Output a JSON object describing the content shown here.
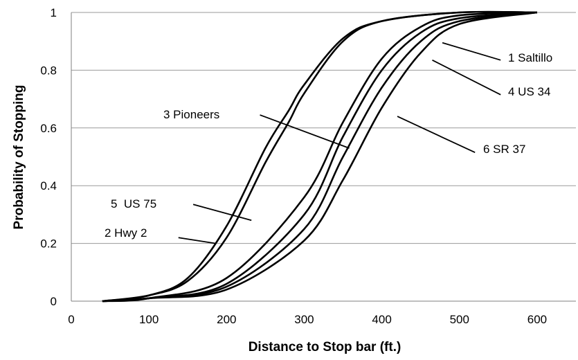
{
  "chart_data": {
    "type": "line",
    "title": "",
    "xlabel": "Distance to Stop bar (ft.)",
    "ylabel": "Probability of Stopping",
    "xlim": [
      0,
      650
    ],
    "ylim": [
      0,
      1
    ],
    "xticks": [
      0,
      100,
      200,
      300,
      400,
      500,
      600
    ],
    "yticks": [
      0,
      0.2,
      0.4,
      0.6,
      0.8,
      1
    ],
    "xtick_labels": [
      "0",
      "100",
      "200",
      "300",
      "400",
      "500",
      "600"
    ],
    "ytick_labels": [
      "0",
      "0.2",
      "0.4",
      "0.6",
      "0.8",
      "1"
    ],
    "grid": true,
    "series": [
      {
        "name": "1 Saltillo",
        "x": [
          40,
          100,
          200,
          300,
          350,
          400,
          450,
          500,
          600
        ],
        "y": [
          0.0,
          0.01,
          0.06,
          0.3,
          0.57,
          0.8,
          0.93,
          0.98,
          1.0
        ]
      },
      {
        "name": "2 Hwy 2",
        "x": [
          40,
          100,
          150,
          200,
          250,
          280,
          300,
          350,
          400,
          500,
          600
        ],
        "y": [
          0.0,
          0.02,
          0.07,
          0.22,
          0.48,
          0.62,
          0.72,
          0.9,
          0.97,
          1.0,
          1.0
        ]
      },
      {
        "name": "3 Pioneers",
        "x": [
          40,
          100,
          200,
          300,
          350,
          400,
          450,
          500,
          600
        ],
        "y": [
          0.0,
          0.01,
          0.08,
          0.36,
          0.62,
          0.84,
          0.95,
          0.99,
          1.0
        ]
      },
      {
        "name": "4 US 34",
        "x": [
          40,
          100,
          200,
          300,
          350,
          400,
          450,
          500,
          600
        ],
        "y": [
          0.0,
          0.01,
          0.05,
          0.25,
          0.5,
          0.74,
          0.9,
          0.97,
          1.0
        ]
      },
      {
        "name": "5 US 75",
        "x": [
          40,
          100,
          150,
          200,
          250,
          280,
          300,
          350,
          400,
          500,
          600
        ],
        "y": [
          0.0,
          0.02,
          0.08,
          0.26,
          0.53,
          0.66,
          0.75,
          0.91,
          0.97,
          1.0,
          1.0
        ]
      },
      {
        "name": "6 SR 37",
        "x": [
          40,
          100,
          200,
          300,
          350,
          400,
          450,
          500,
          600
        ],
        "y": [
          0.0,
          0.01,
          0.04,
          0.21,
          0.42,
          0.67,
          0.86,
          0.96,
          1.0
        ]
      }
    ],
    "annotations": [
      {
        "text": "1 Saltillo",
        "series": "1 Saltillo"
      },
      {
        "text": "4 US 34",
        "series": "4 US 34"
      },
      {
        "text": "3 Pioneers",
        "series": "3 Pioneers"
      },
      {
        "text": "6 SR 37",
        "series": "6 SR 37"
      },
      {
        "text": "5  US 75",
        "series": "5 US 75"
      },
      {
        "text": "2 Hwy 2",
        "series": "2 Hwy 2"
      }
    ]
  }
}
